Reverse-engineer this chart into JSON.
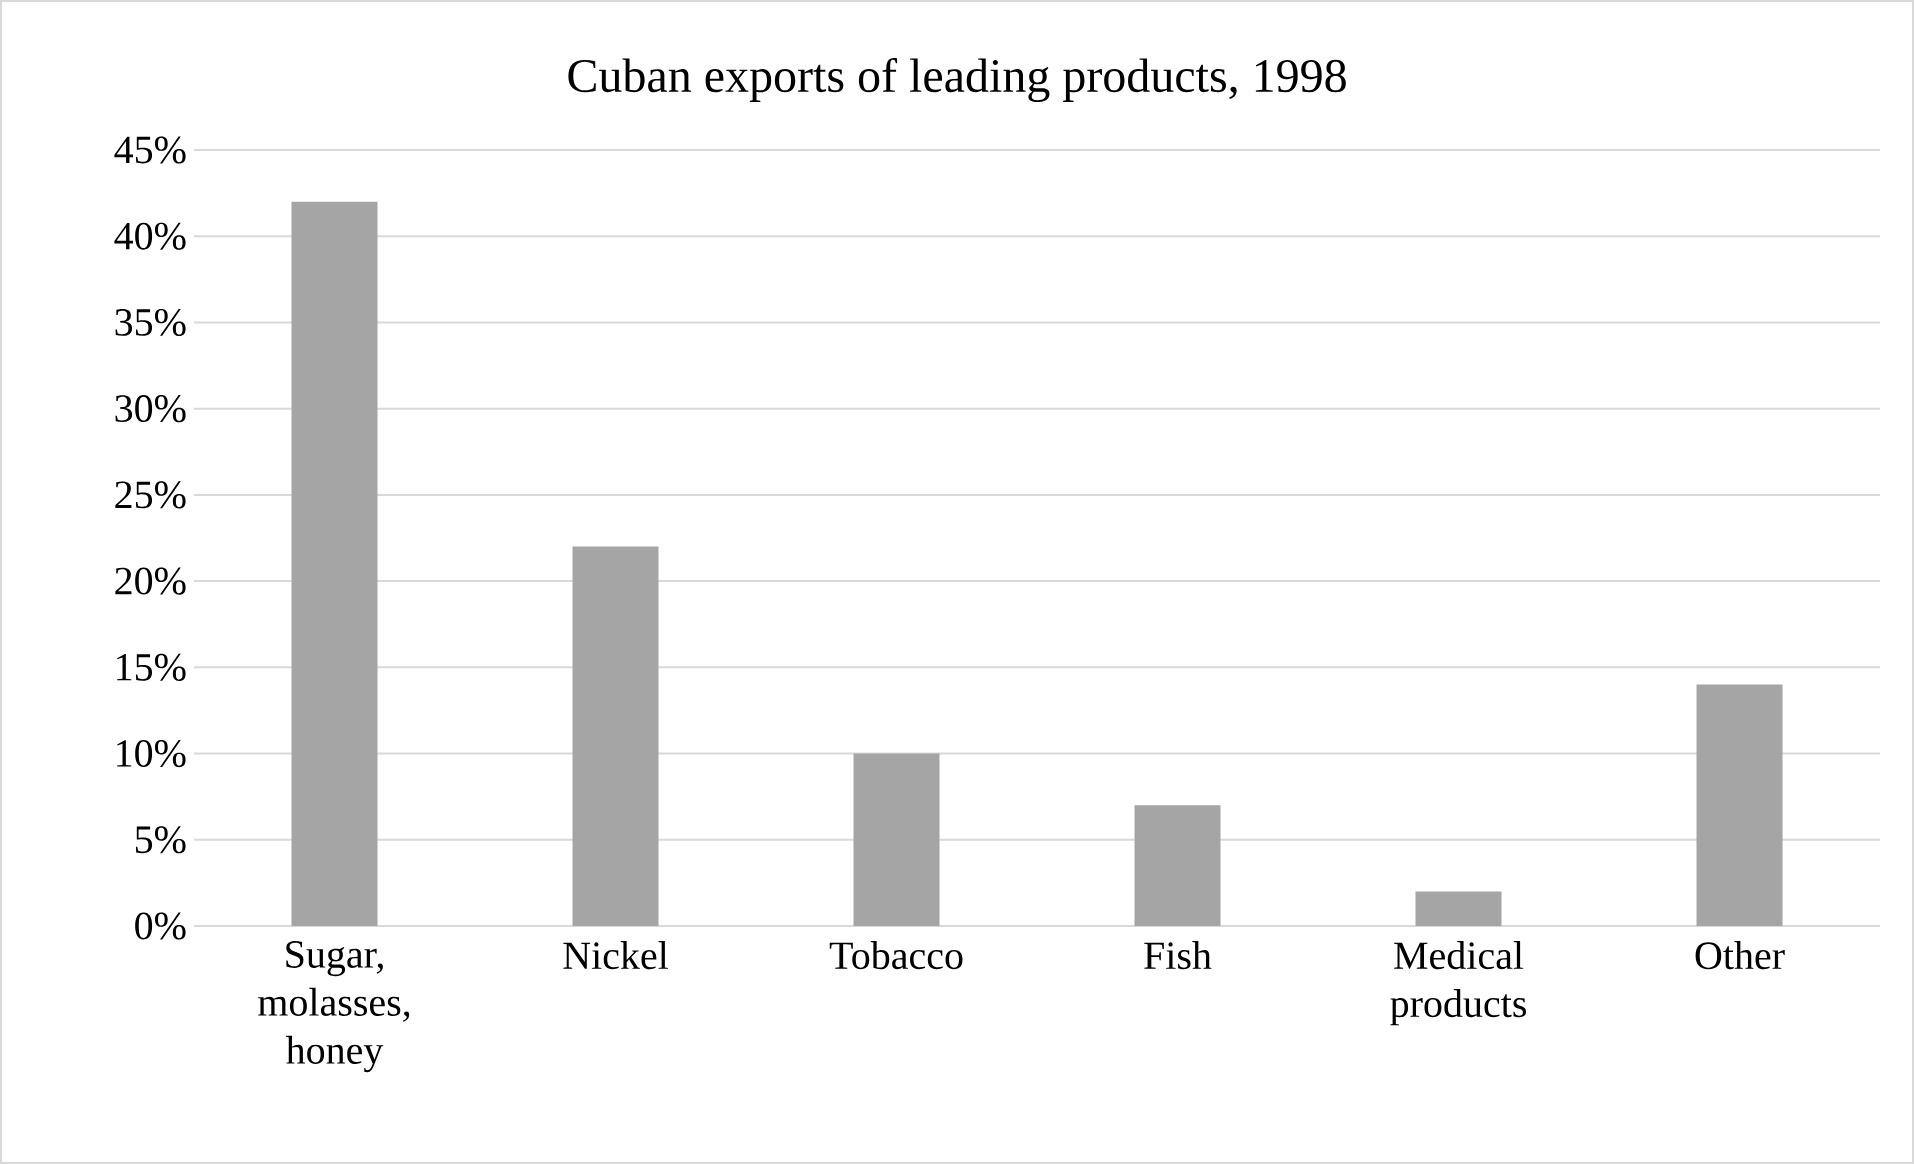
{
  "chart_data": {
    "type": "bar",
    "title": "Cuban exports of leading products, 1998",
    "categories": [
      "Sugar, molasses, honey",
      "Nickel",
      "Tobacco",
      "Fish",
      "Medical products",
      "Other"
    ],
    "values": [
      42,
      22,
      10,
      7,
      2,
      14
    ],
    "color": "#a5a5a5",
    "ylim": [
      0,
      45
    ],
    "yticks": [
      {
        "value": 0,
        "label": "0%"
      },
      {
        "value": 5,
        "label": "5%"
      },
      {
        "value": 10,
        "label": "10%"
      },
      {
        "value": 15,
        "label": "15%"
      },
      {
        "value": 20,
        "label": "20%"
      },
      {
        "value": 25,
        "label": "25%"
      },
      {
        "value": 30,
        "label": "30%"
      },
      {
        "value": 35,
        "label": "35%"
      },
      {
        "value": 40,
        "label": "40%"
      },
      {
        "value": 45,
        "label": "45%"
      }
    ],
    "grid": "y"
  }
}
